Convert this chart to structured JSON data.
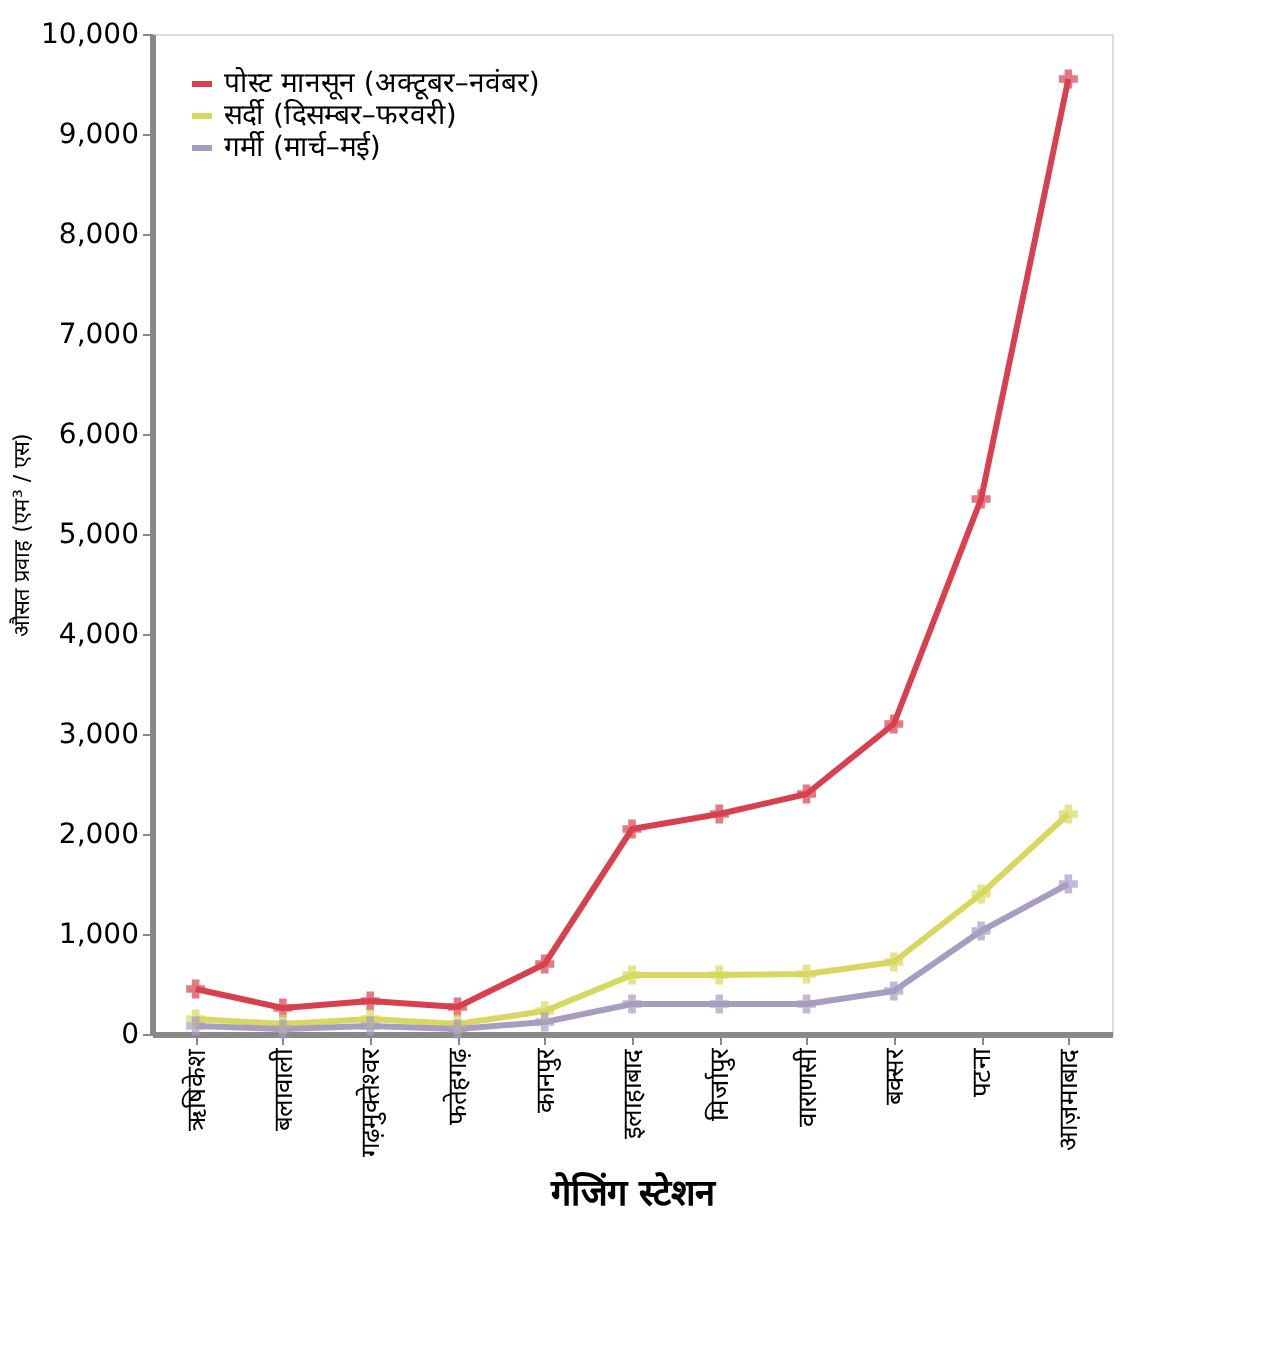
{
  "chart_data": {
    "type": "line",
    "xlabel": "गेजिंग स्टेशन",
    "ylabel": "औसत प्रवाह (एम³ / एस)",
    "categories": [
      "ऋषिकेश",
      "बलावाली",
      "गढ़मुक्तेश्वर",
      "फतेहगढ़",
      "कानपुर",
      "इलाहाबाद",
      "मिर्जापुर",
      "वाराणसी",
      "बक्सर",
      "पटना",
      "आज़माबाद"
    ],
    "series": [
      {
        "name": "पोस्ट मानसून (अक्टूबर–नवंबर)",
        "color": "#d9404f",
        "values": [
          450,
          260,
          330,
          270,
          700,
          2050,
          2200,
          2400,
          3100,
          5350,
          9550
        ]
      },
      {
        "name": "सर्दी (दिसम्बर–फरवरी)",
        "color": "#d8d860",
        "values": [
          150,
          100,
          150,
          100,
          230,
          590,
          590,
          600,
          720,
          1400,
          2200
        ]
      },
      {
        "name": "गर्मी (मार्च–मई)",
        "color": "#a89cc0",
        "values": [
          80,
          50,
          80,
          50,
          120,
          300,
          300,
          300,
          430,
          1030,
          1500
        ]
      }
    ],
    "ylim": [
      0,
      10000
    ],
    "yticks": [
      0,
      {
        "value": 1000,
        "label": "1,000"
      },
      {
        "value": 2000,
        "label": "2,000"
      },
      {
        "value": 3000,
        "label": "3,000"
      },
      {
        "value": 4000,
        "label": "4,000"
      },
      {
        "value": 5000,
        "label": "5,000"
      },
      {
        "value": 6000,
        "label": "6,000"
      },
      {
        "value": 7000,
        "label": "7,000"
      },
      {
        "value": 8000,
        "label": "8,000"
      },
      {
        "value": 9000,
        "label": "9,000"
      },
      {
        "value": 10000,
        "label": "10,000"
      }
    ],
    "grid": false,
    "legend": "top left",
    "marker": "cross",
    "line_style": "solid"
  }
}
